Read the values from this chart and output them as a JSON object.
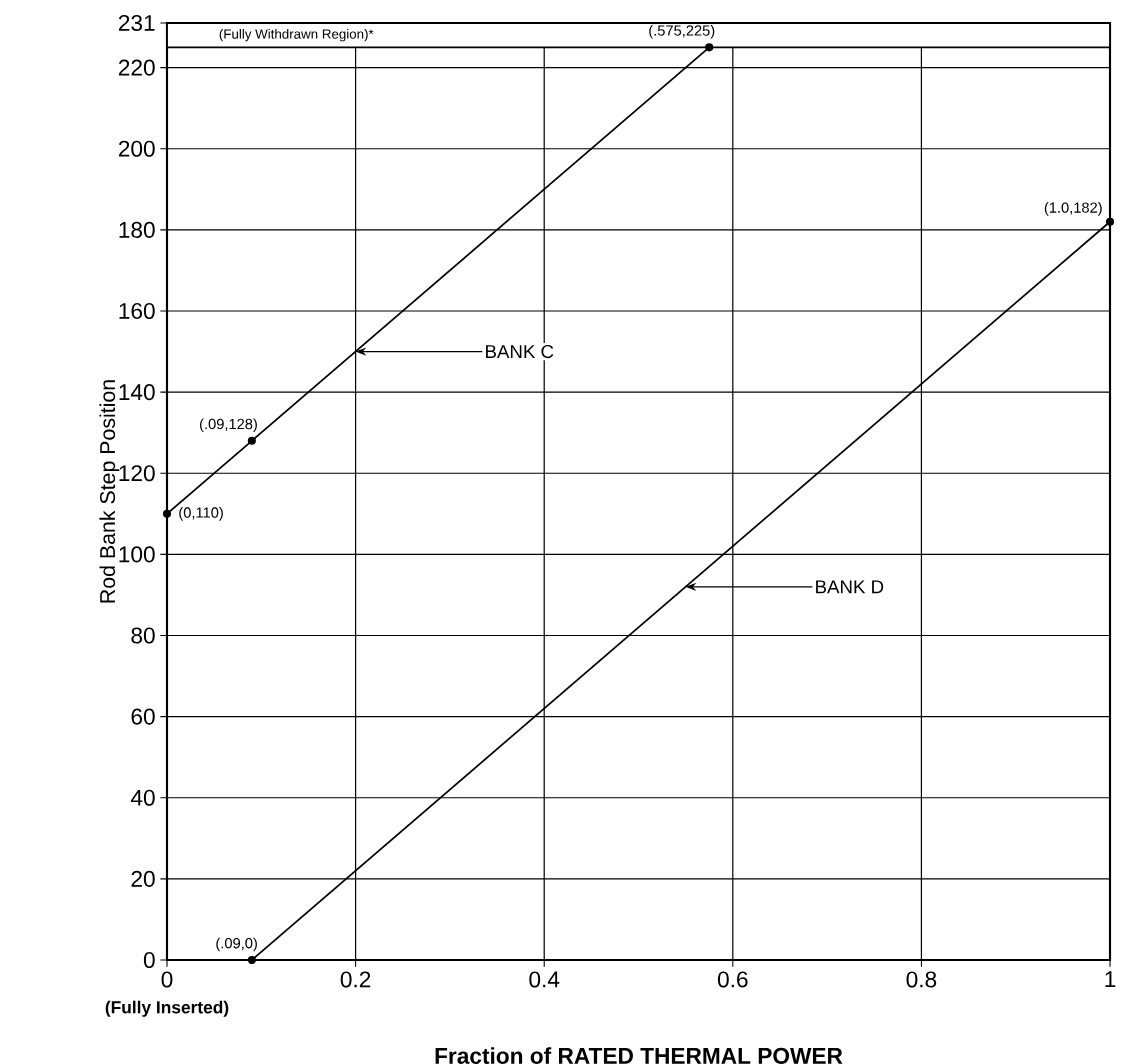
{
  "chart_data": {
    "type": "line",
    "xlabel": "Fraction of RATED THERMAL POWER",
    "ylabel": "Rod Bank Step Position",
    "series": [
      {
        "color": "#000000",
        "x": [
          0,
          0.09,
          0.575
        ],
        "values": [
          110,
          128,
          225
        ]
      },
      {
        "color": "#000000",
        "x": [
          0.09,
          1.0
        ],
        "values": [
          0,
          182
        ]
      }
    ],
    "xlim": [
      0,
      1
    ],
    "ylim": [
      0,
      231
    ],
    "xticks": [
      0,
      0.2,
      0.4,
      0.6,
      0.8,
      1
    ],
    "yticks": [
      0,
      20,
      40,
      60,
      80,
      100,
      120,
      140,
      160,
      180,
      200,
      220,
      231
    ],
    "grid": true,
    "marker": "circle",
    "line_style": "solid",
    "bands": [
      {
        "axis": "y",
        "from": 225,
        "to": 231,
        "label": "(Fully Withdrawn Region)*",
        "color": "#ffffff"
      }
    ],
    "annotations": [
      {
        "text": "(.575,225)",
        "x": 0.575,
        "y": 225
      },
      {
        "text": "(1.0,182)",
        "x": 1.0,
        "y": 182
      },
      {
        "text": "(.09,128)",
        "x": 0.09,
        "y": 128
      },
      {
        "text": "(0,110)",
        "x": 0,
        "y": 110
      },
      {
        "text": "(.09,0)",
        "x": 0.09,
        "y": 0
      },
      {
        "text": "BANK C",
        "x": 0.2,
        "y": 150
      },
      {
        "text": "BANK D",
        "x": 0.55,
        "y": 92
      },
      "(Fully Inserted)"
    ]
  }
}
